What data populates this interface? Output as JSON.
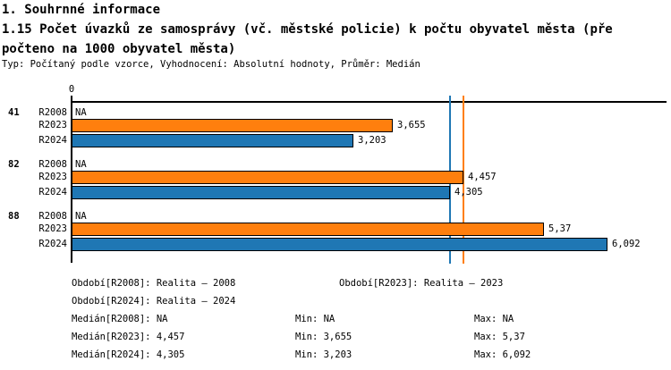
{
  "header": {
    "section_title": "1. Souhrnné informace",
    "indicator_title_lines": [
      "1.15 Počet úvazků ze samosprávy (vč. městské policie) k počtu obyvatel města (pře",
      "počteno na 1000 obyvatel města)"
    ],
    "meta": "Typ: Počítaný podle vzorce, Vyhodnocení: Absolutní hodnoty, Průměr: Medián"
  },
  "chart_data": {
    "type": "bar",
    "orientation": "horizontal",
    "title": "1.15 Počet úvazků ze samosprávy (vč. městské policie) k počtu obyvatel města (přepočteno na 1000 obyvatel města)",
    "xlim": [
      0,
      6.77
    ],
    "grid": false,
    "axis_ticks": [
      {
        "value": 0,
        "label": "0"
      }
    ],
    "categories": [
      "41",
      "82",
      "88"
    ],
    "series_labels": [
      "R2008",
      "R2023",
      "R2024"
    ],
    "colors": {
      "bar_2023": "#ff7f0e",
      "bar_2024": "#1f77b4",
      "axis": "#000000"
    },
    "groups": [
      {
        "category": "41",
        "rows": [
          {
            "label": "R2008",
            "value": null,
            "display": "NA"
          },
          {
            "label": "R2023",
            "value": 3.655,
            "display": "3,655",
            "color": "#ff7f0e"
          },
          {
            "label": "R2024",
            "value": 3.203,
            "display": "3,203",
            "color": "#1f77b4"
          }
        ]
      },
      {
        "category": "82",
        "rows": [
          {
            "label": "R2008",
            "value": null,
            "display": "NA"
          },
          {
            "label": "R2023",
            "value": 4.457,
            "display": "4,457",
            "color": "#ff7f0e"
          },
          {
            "label": "R2024",
            "value": 4.305,
            "display": "4,305",
            "color": "#1f77b4"
          }
        ]
      },
      {
        "category": "88",
        "rows": [
          {
            "label": "R2008",
            "value": null,
            "display": "NA"
          },
          {
            "label": "R2023",
            "value": 5.37,
            "display": "5,37",
            "color": "#ff7f0e"
          },
          {
            "label": "R2024",
            "value": 6.092,
            "display": "6,092",
            "color": "#1f77b4"
          }
        ]
      }
    ],
    "reference_lines": [
      {
        "name": "median-R2024",
        "value": 4.305,
        "color": "#1f77b4"
      },
      {
        "name": "median-R2023",
        "value": 4.457,
        "color": "#ff7f0e"
      }
    ]
  },
  "footer": {
    "obdobi_r2008": "Období[R2008]: Realita – 2008",
    "obdobi_r2023": "Období[R2023]: Realita – 2023",
    "obdobi_r2024": "Období[R2024]: Realita – 2024",
    "median_r2008": "Medián[R2008]: NA",
    "min_r2008": "Min: NA",
    "max_r2008": "Max: NA",
    "median_r2023": "Medián[R2023]: 4,457",
    "min_r2023": "Min: 3,655",
    "max_r2023": "Max: 5,37",
    "median_r2024": "Medián[R2024]: 4,305",
    "min_r2024": "Min: 3,203",
    "max_r2024": "Max: 6,092"
  }
}
